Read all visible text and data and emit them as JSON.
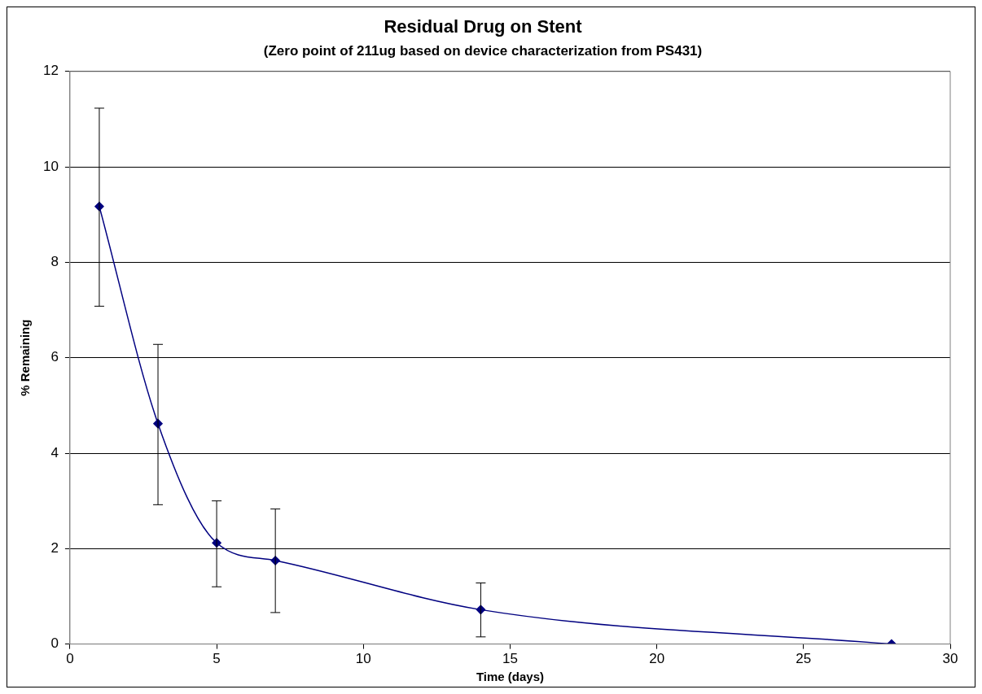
{
  "chart_data": {
    "type": "line",
    "title": "Residual Drug on Stent",
    "subtitle": "(Zero point of 211ug based on device characterization from PS431)",
    "xlabel": "Time (days)",
    "ylabel": "% Remaining",
    "x": [
      1,
      3,
      5,
      7,
      14,
      28
    ],
    "series": [
      {
        "color": "#000080",
        "values": [
          9.17,
          4.62,
          2.12,
          1.75,
          0.72,
          0
        ],
        "errors": [
          [
            7.08,
            11.23
          ],
          [
            2.92,
            6.28
          ],
          [
            1.2,
            3.0
          ],
          [
            0.66,
            2.83
          ],
          [
            0.15,
            1.28
          ],
          null
        ]
      }
    ],
    "xlim": [
      0,
      30
    ],
    "xticks": [
      0,
      5,
      10,
      15,
      20,
      25,
      30
    ],
    "ylim": [
      0,
      12
    ],
    "yticks": [
      0,
      2,
      4,
      6,
      8,
      10,
      12
    ],
    "grid": "y",
    "legend": false,
    "marker": "diamond",
    "line_style": "solid"
  }
}
